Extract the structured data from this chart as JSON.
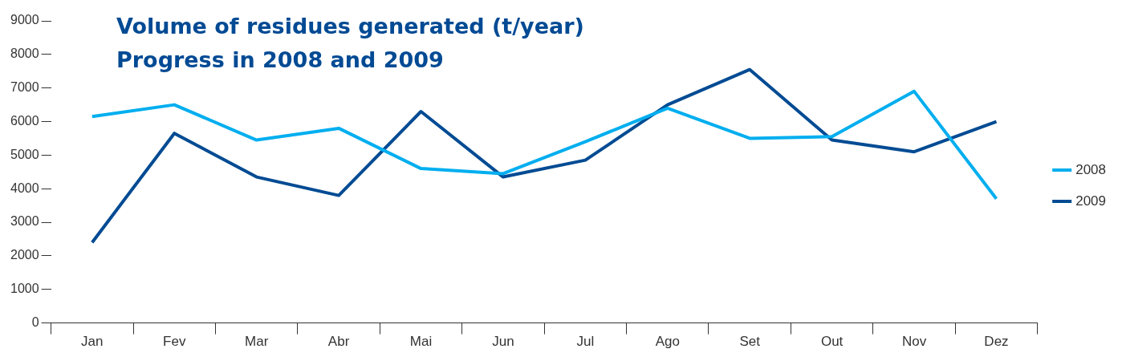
{
  "chart_data": {
    "type": "line",
    "title": "Volume of residues generated (t/year)\nProgress in 2008 and 2009",
    "categories": [
      "Jan",
      "Fev",
      "Mar",
      "Abr",
      "Mai",
      "Jun",
      "Jul",
      "Ago",
      "Set",
      "Out",
      "Nov",
      "Dez"
    ],
    "series": [
      {
        "name": "2008",
        "color": "#00aeef",
        "values": [
          6150,
          6500,
          5450,
          5800,
          4600,
          4450,
          5400,
          6400,
          5500,
          5550,
          6900,
          3700
        ]
      },
      {
        "name": "2009",
        "color": "#004b93",
        "values": [
          2400,
          5650,
          4350,
          3800,
          6300,
          4350,
          4850,
          6500,
          7550,
          5450,
          5100,
          6000
        ]
      }
    ],
    "ylim": [
      0,
      9000
    ],
    "yticks": [
      0,
      1000,
      2000,
      3000,
      4000,
      5000,
      6000,
      7000,
      8000,
      9000
    ],
    "grid": false,
    "legend": "right",
    "marker": "none",
    "line_style": "solid"
  }
}
